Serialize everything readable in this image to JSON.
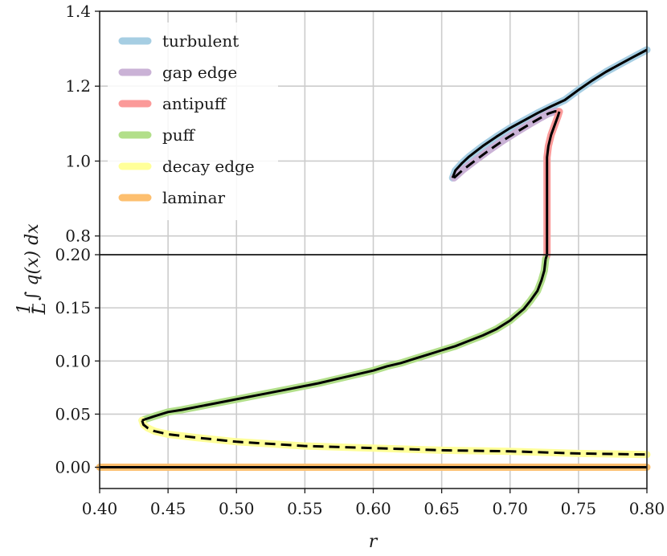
{
  "chart_data": {
    "type": "line",
    "title": "",
    "xlabel": "r",
    "ylabel": "1/L ∫ q(x) dx",
    "ylabel_parts": {
      "numerator": "1",
      "denominator": "L",
      "integrand": "∫ q(x) dx"
    },
    "xlim": [
      0.4,
      0.8
    ],
    "x_ticks": [
      "0.40",
      "0.45",
      "0.50",
      "0.55",
      "0.60",
      "0.65",
      "0.70",
      "0.75",
      "0.80"
    ],
    "grid": true,
    "broken_axis": true,
    "panels": [
      {
        "name": "upper",
        "ylim": [
          0.75,
          1.4
        ],
        "y_ticks": [
          "0.8",
          "1.0",
          "1.2",
          "1.4"
        ]
      },
      {
        "name": "lower",
        "ylim": [
          -0.02,
          0.2
        ],
        "y_ticks": [
          "0.00",
          "0.05",
          "0.10",
          "0.15",
          "0.20"
        ]
      }
    ],
    "legend": {
      "location": "top-left",
      "entries": [
        {
          "label": "turbulent",
          "color": "#a6cee3"
        },
        {
          "label": "gap edge",
          "color": "#cab2d6"
        },
        {
          "label": "antipuff",
          "color": "#fb9a99"
        },
        {
          "label": "puff",
          "color": "#b2df8a"
        },
        {
          "label": "decay edge",
          "color": "#ffff99"
        },
        {
          "label": "laminar",
          "color": "#fdbf6f"
        }
      ]
    },
    "series": [
      {
        "name": "turbulent",
        "color": "#a6cee3",
        "overlay": "solid",
        "segments": [
          {
            "panel": "upper",
            "points": [
              [
                0.658,
                0.955
              ],
              [
                0.66,
                0.975
              ],
              [
                0.665,
                0.995
              ],
              [
                0.67,
                1.012
              ],
              [
                0.68,
                1.04
              ],
              [
                0.69,
                1.065
              ],
              [
                0.7,
                1.088
              ],
              [
                0.71,
                1.108
              ],
              [
                0.72,
                1.128
              ],
              [
                0.73,
                1.146
              ],
              [
                0.74,
                1.163
              ],
              [
                0.75,
                1.19
              ],
              [
                0.76,
                1.215
              ],
              [
                0.77,
                1.238
              ],
              [
                0.78,
                1.258
              ],
              [
                0.79,
                1.278
              ],
              [
                0.8,
                1.297
              ]
            ]
          }
        ]
      },
      {
        "name": "gap edge",
        "color": "#cab2d6",
        "overlay": "dashed",
        "segments": [
          {
            "panel": "upper",
            "points": [
              [
                0.659,
                0.955
              ],
              [
                0.665,
                0.975
              ],
              [
                0.675,
                1.003
              ],
              [
                0.685,
                1.03
              ],
              [
                0.695,
                1.055
              ],
              [
                0.705,
                1.078
              ],
              [
                0.715,
                1.1
              ],
              [
                0.722,
                1.115
              ],
              [
                0.728,
                1.127
              ],
              [
                0.733,
                1.133
              ],
              [
                0.736,
                1.132
              ]
            ]
          }
        ]
      },
      {
        "name": "antipuff",
        "color": "#fb9a99",
        "overlay": "solid",
        "segments": [
          {
            "panel": "upper",
            "points": [
              [
                0.736,
                1.132
              ],
              [
                0.735,
                1.12
              ],
              [
                0.733,
                1.1
              ],
              [
                0.73,
                1.07
              ],
              [
                0.728,
                1.04
              ],
              [
                0.727,
                1.01
              ],
              [
                0.727,
                0.75
              ]
            ]
          },
          {
            "panel": "lower",
            "points": [
              [
                0.727,
                0.2
              ],
              [
                0.726,
                0.196
              ]
            ]
          }
        ]
      },
      {
        "name": "puff",
        "color": "#b2df8a",
        "overlay": "solid",
        "segments": [
          {
            "panel": "lower",
            "points": [
              [
                0.726,
                0.196
              ],
              [
                0.725,
                0.185
              ],
              [
                0.723,
                0.176
              ],
              [
                0.72,
                0.166
              ],
              [
                0.715,
                0.157
              ],
              [
                0.71,
                0.149
              ],
              [
                0.7,
                0.138
              ],
              [
                0.69,
                0.13
              ],
              [
                0.68,
                0.124
              ],
              [
                0.67,
                0.119
              ],
              [
                0.66,
                0.114
              ],
              [
                0.65,
                0.11
              ],
              [
                0.64,
                0.106
              ],
              [
                0.63,
                0.102
              ],
              [
                0.62,
                0.098
              ],
              [
                0.61,
                0.095
              ],
              [
                0.6,
                0.091
              ],
              [
                0.58,
                0.085
              ],
              [
                0.56,
                0.079
              ],
              [
                0.54,
                0.074
              ],
              [
                0.52,
                0.069
              ],
              [
                0.5,
                0.064
              ],
              [
                0.48,
                0.059
              ],
              [
                0.46,
                0.054
              ],
              [
                0.45,
                0.052
              ],
              [
                0.44,
                0.048
              ],
              [
                0.433,
                0.045
              ],
              [
                0.431,
                0.044
              ]
            ]
          }
        ]
      },
      {
        "name": "decay edge",
        "color": "#ffff99",
        "overlay": "dashed",
        "segments": [
          {
            "panel": "lower",
            "points": [
              [
                0.431,
                0.044
              ],
              [
                0.432,
                0.04
              ],
              [
                0.435,
                0.037
              ],
              [
                0.44,
                0.034
              ],
              [
                0.45,
                0.031
              ],
              [
                0.47,
                0.028
              ],
              [
                0.5,
                0.024
              ],
              [
                0.55,
                0.02
              ],
              [
                0.6,
                0.018
              ],
              [
                0.65,
                0.016
              ],
              [
                0.7,
                0.015
              ],
              [
                0.75,
                0.013
              ],
              [
                0.8,
                0.012
              ]
            ]
          }
        ]
      },
      {
        "name": "laminar",
        "color": "#fdbf6f",
        "overlay": "solid",
        "segments": [
          {
            "panel": "lower",
            "points": [
              [
                0.4,
                0.0
              ],
              [
                0.8,
                0.0
              ]
            ]
          }
        ]
      }
    ]
  }
}
